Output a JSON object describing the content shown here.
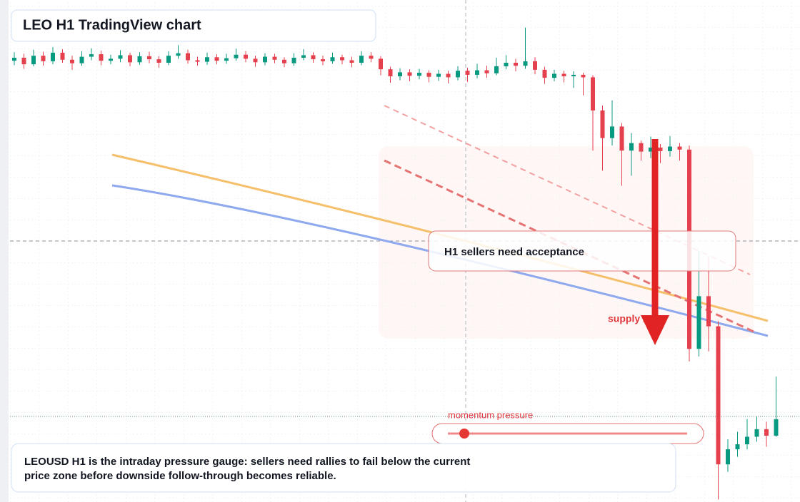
{
  "chart_data": {
    "type": "candlestick",
    "title": "LEO H1 TradingView chart",
    "annotations": {
      "headline": "H1 sellers need acceptance",
      "zone": "supply zone",
      "gauge": "momentum pressure"
    },
    "caption": [
      "LEOUSD H1 is the intraday pressure gauge: sellers need rallies to fail below the current",
      "price zone before downside follow-through becomes reliable."
    ],
    "up_color": "#089981",
    "down_color": "#e5404e",
    "ylim": [
      0,
      100
    ],
    "open": [
      87.9,
      88.5,
      87.2,
      88.9,
      87.8,
      89.5,
      88.1,
      87.4,
      88.7,
      89.2,
      87.9,
      88.3,
      89.0,
      87.6,
      88.8,
      88.2,
      87.5,
      88.9,
      89.4,
      88.0,
      87.7,
      88.6,
      87.9,
      88.4,
      89.1,
      88.3,
      87.6,
      88.7,
      88.1,
      87.4,
      88.5,
      89.0,
      88.2,
      87.8,
      88.6,
      88.0,
      87.5,
      88.9,
      88.3,
      86.2,
      84.8,
      85.6,
      84.9,
      85.5,
      84.7,
      85.3,
      84.6,
      85.9,
      85.1,
      86.0,
      85.4,
      86.8,
      87.5,
      86.9,
      87.8,
      86.1,
      84.5,
      85.3,
      84.8,
      85.1,
      84.6,
      78.0,
      72.5,
      74.8,
      70.0,
      71.5,
      69.8,
      70.6,
      69.9,
      70.8,
      70.2,
      30.5,
      41.0,
      35.0,
      7.5,
      10.5,
      11.5,
      13.0,
      14.5,
      13.2
    ],
    "high": [
      89.6,
      89.3,
      90.1,
      89.7,
      90.6,
      90.2,
      88.9,
      89.8,
      90.4,
      89.9,
      89.1,
      90.0,
      89.5,
      89.6,
      89.7,
      88.8,
      89.8,
      91.0,
      90.1,
      88.7,
      89.5,
      89.2,
      89.3,
      90.3,
      89.8,
      88.9,
      89.4,
      89.3,
      88.6,
      89.4,
      90.2,
      89.6,
      88.9,
      89.5,
      89.1,
      88.7,
      89.8,
      89.6,
      88.8,
      86.7,
      86.4,
      86.2,
      86.3,
      86.0,
      86.1,
      85.9,
      86.8,
      86.5,
      87.3,
      86.9,
      88.5,
      89.0,
      88.3,
      94.5,
      88.6,
      86.7,
      86.1,
      85.9,
      85.8,
      85.5,
      85.0,
      79.0,
      80.0,
      75.5,
      73.5,
      72.0,
      72.8,
      71.3,
      72.9,
      71.5,
      71.0,
      50.0,
      49.0,
      36.0,
      12.5,
      14.0,
      16.5,
      17.0,
      16.0,
      25.0
    ],
    "low": [
      87.0,
      86.3,
      86.8,
      86.9,
      87.2,
      87.5,
      86.1,
      86.9,
      88.0,
      87.0,
      87.2,
      87.6,
      86.8,
      87.1,
      87.4,
      86.5,
      87.0,
      88.3,
      87.3,
      86.9,
      87.1,
      87.2,
      87.3,
      87.9,
      87.6,
      86.7,
      87.0,
      87.4,
      86.6,
      86.9,
      88.0,
      87.5,
      87.0,
      87.3,
      87.2,
      86.6,
      87.0,
      87.6,
      85.0,
      83.5,
      84.0,
      83.8,
      84.2,
      83.6,
      83.9,
      83.4,
      84.0,
      83.7,
      84.4,
      84.5,
      85.0,
      86.2,
      85.8,
      86.3,
      85.2,
      83.3,
      83.8,
      83.6,
      82.5,
      81.0,
      70.0,
      66.0,
      71.0,
      63.0,
      65.0,
      68.0,
      68.5,
      67.5,
      68.8,
      68.0,
      28.0,
      29.0,
      30.0,
      0.5,
      6.0,
      9.0,
      10.5,
      12.0,
      11.0,
      13.0
    ],
    "close": [
      88.5,
      87.2,
      88.9,
      87.8,
      89.5,
      88.1,
      87.4,
      88.7,
      89.2,
      87.9,
      88.3,
      89.0,
      87.6,
      88.8,
      88.2,
      87.5,
      88.9,
      89.4,
      88.0,
      87.7,
      88.6,
      87.9,
      88.4,
      89.1,
      88.3,
      87.6,
      88.7,
      88.1,
      87.4,
      88.5,
      89.0,
      88.2,
      87.8,
      88.6,
      88.0,
      87.5,
      88.9,
      88.3,
      86.2,
      84.8,
      85.6,
      84.9,
      85.5,
      84.7,
      85.3,
      84.6,
      85.9,
      85.1,
      86.0,
      85.4,
      86.8,
      87.5,
      86.9,
      87.8,
      86.1,
      84.5,
      85.3,
      84.8,
      85.1,
      84.6,
      78.0,
      72.5,
      74.8,
      70.0,
      71.5,
      69.8,
      70.6,
      69.9,
      70.8,
      70.2,
      30.5,
      41.0,
      35.0,
      7.5,
      10.5,
      11.5,
      13.0,
      14.5,
      13.2,
      16.5
    ]
  }
}
